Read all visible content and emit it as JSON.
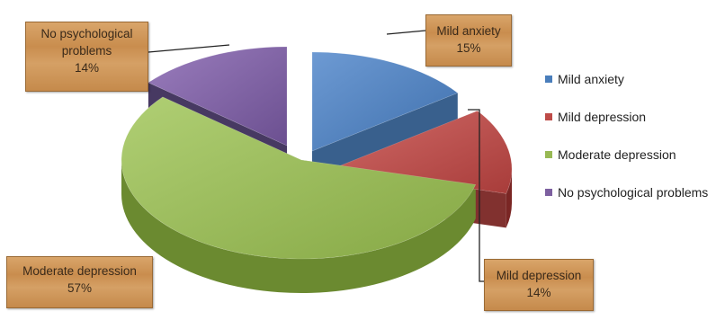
{
  "chart_data": {
    "type": "pie",
    "title": "",
    "slices": [
      {
        "label": "Mild anxiety",
        "value": 15,
        "pct_label": "15%",
        "color": "#4a7ebb"
      },
      {
        "label": "Mild depression",
        "value": 14,
        "pct_label": "14%",
        "color": "#be4b48"
      },
      {
        "label": "Moderate depression",
        "value": 57,
        "pct_label": "57%",
        "color": "#98b954"
      },
      {
        "label": "No psychological problems",
        "value": 14,
        "pct_label": "14%",
        "color": "#7d60a0"
      }
    ],
    "legend_position": "right"
  },
  "callouts": {
    "no_psych": {
      "line1": "No psychological",
      "line2": "problems",
      "line3": "14%"
    },
    "mild_anxiety": {
      "line1": "Mild anxiety",
      "line2": "15%"
    },
    "moderate": {
      "line1": "Moderate depression",
      "line2": "57%"
    },
    "mild_depression": {
      "line1": "Mild depression",
      "line2": "14%"
    }
  },
  "legend": [
    {
      "label": "Mild anxiety",
      "color": "#4a7ebb"
    },
    {
      "label": "Mild depression",
      "color": "#be4b48"
    },
    {
      "label": "Moderate depression",
      "color": "#98b954"
    },
    {
      "label": "No psychological problems",
      "color": "#7d60a0"
    }
  ]
}
